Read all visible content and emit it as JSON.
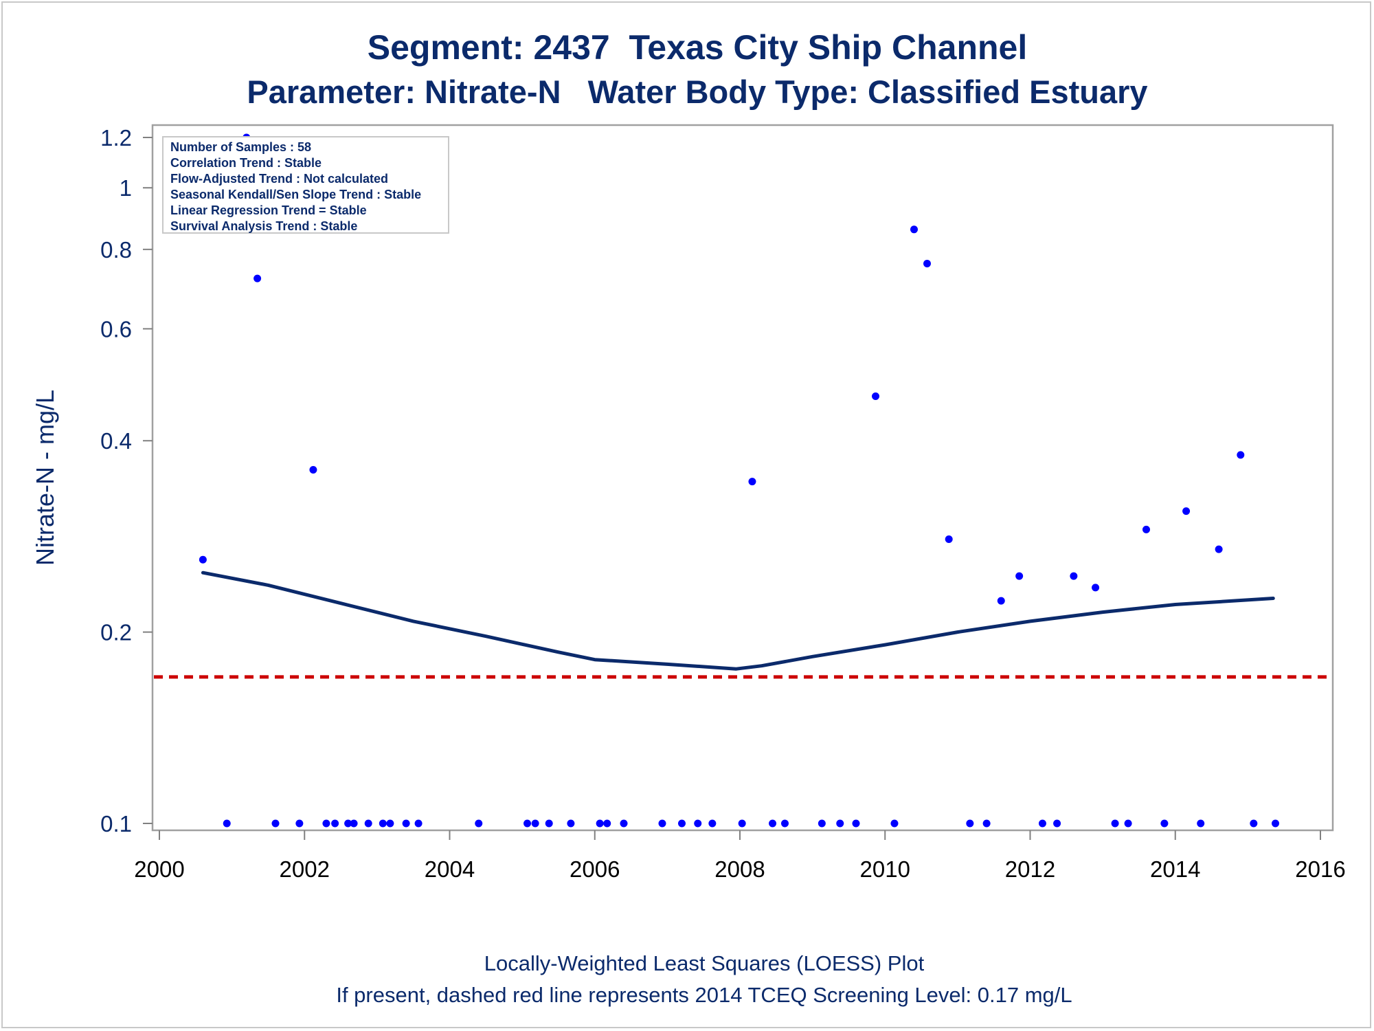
{
  "title": "Segment: 2437  Texas City Ship Channel",
  "subtitle": "Parameter: Nitrate-N   Water Body Type: Classified Estuary",
  "footnote1": "Locally-Weighted Least Squares (LOESS) Plot",
  "footnote2": "If present, dashed red line represents 2014 TCEQ Screening Level: 0.17 mg/L",
  "stats_box": [
    "Number of Samples : 58",
    "Correlation Trend : Stable",
    "Flow-Adjusted Trend : Not calculated",
    "Seasonal Kendall/Sen Slope Trend : Stable",
    "Linear Regression Trend = Stable",
    "Survival Analysis Trend : Stable"
  ],
  "colors": {
    "text": "#0b2a6b",
    "points": "#0000ff",
    "loess": "#0b2a6b",
    "screening": "#cc0000",
    "frame": "#a0a0a0"
  },
  "chart_data": {
    "type": "scatter",
    "xlabel": "",
    "ylabel": "Nitrate-N - mg/L",
    "xlim": [
      2000,
      2016
    ],
    "ylim": [
      0.1,
      1.2
    ],
    "y_scale": "log",
    "x_ticks": [
      2000,
      2002,
      2004,
      2006,
      2008,
      2010,
      2012,
      2014,
      2016
    ],
    "y_ticks": [
      0.1,
      0.2,
      0.4,
      0.6,
      0.8,
      1,
      1.2
    ],
    "y_tick_labels": [
      "0.1",
      "0.2",
      "0.4",
      "0.6",
      "0.8",
      "1",
      "1.2"
    ],
    "grid": false,
    "screening_level": 0.17,
    "series": [
      {
        "type": "scatter",
        "x": [
          2000.6,
          2001.2,
          2001.35,
          2002.12,
          2008.17,
          2009.87,
          2010.4,
          2010.58,
          2010.88,
          2011.6,
          2011.85,
          2012.6,
          2012.9,
          2013.6,
          2014.15,
          2014.6,
          2014.9,
          2000.93,
          2001.6,
          2001.93,
          2002.3,
          2002.42,
          2002.6,
          2002.68,
          2002.88,
          2003.08,
          2003.18,
          2003.4,
          2003.57,
          2004.4,
          2005.07,
          2005.18,
          2005.37,
          2005.67,
          2006.07,
          2006.17,
          2006.4,
          2006.93,
          2007.2,
          2007.42,
          2007.62,
          2008.03,
          2008.45,
          2008.62,
          2009.13,
          2009.38,
          2009.6,
          2010.13,
          2011.17,
          2011.4,
          2012.17,
          2012.37,
          2013.17,
          2013.35,
          2013.85,
          2014.35,
          2015.08,
          2015.38
        ],
        "y": [
          0.26,
          1.2,
          0.72,
          0.36,
          0.345,
          0.47,
          0.86,
          0.76,
          0.28,
          0.224,
          0.245,
          0.245,
          0.235,
          0.29,
          0.31,
          0.27,
          0.38,
          0.1,
          0.1,
          0.1,
          0.1,
          0.1,
          0.1,
          0.1,
          0.1,
          0.1,
          0.1,
          0.1,
          0.1,
          0.1,
          0.1,
          0.1,
          0.1,
          0.1,
          0.1,
          0.1,
          0.1,
          0.1,
          0.1,
          0.1,
          0.1,
          0.1,
          0.1,
          0.1,
          0.1,
          0.1,
          0.1,
          0.1,
          0.1,
          0.1,
          0.1,
          0.1,
          0.1,
          0.1,
          0.1,
          0.1,
          0.1,
          0.1
        ]
      },
      {
        "type": "line",
        "x": [
          2000.6,
          2001.5,
          2002.5,
          2003.5,
          2004.5,
          2005.5,
          2006.0,
          2007.0,
          2007.95,
          2008.3,
          2009.0,
          2010.0,
          2011.0,
          2012.0,
          2013.0,
          2014.0,
          2015.35
        ],
        "y": [
          0.248,
          0.237,
          0.222,
          0.208,
          0.197,
          0.186,
          0.181,
          0.178,
          0.175,
          0.177,
          0.183,
          0.191,
          0.2,
          0.208,
          0.215,
          0.221,
          0.226
        ]
      }
    ]
  }
}
